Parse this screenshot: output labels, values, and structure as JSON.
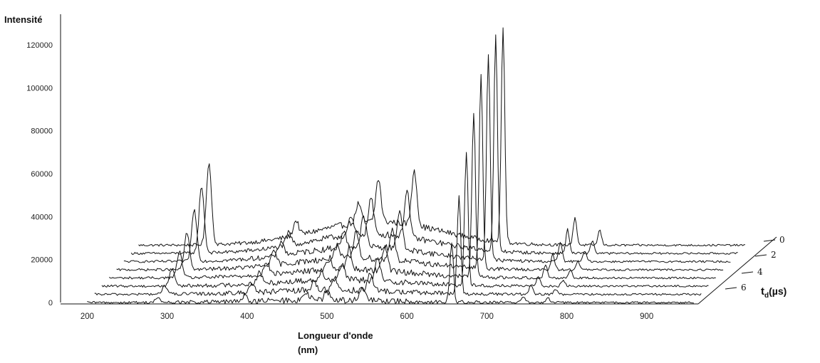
{
  "chart_data": {
    "type": "line",
    "projection": "3d-waterfall",
    "title": "",
    "ylabel": "Intensité",
    "xlabel_line1": "Longueur d'onde",
    "xlabel_line2": "(nm)",
    "zlabel": "t",
    "zlabel_sub": "d",
    "zlabel_unit": "(µs)",
    "xlim": [
      180,
      960
    ],
    "ylim": [
      0,
      130000
    ],
    "x_ticks": [
      "200",
      "300",
      "400",
      "500",
      "600",
      "700",
      "800",
      "900"
    ],
    "y_ticks": [
      "0",
      "20000",
      "40000",
      "60000",
      "80000",
      "100000",
      "120000"
    ],
    "z_ticks": [
      "0",
      "2",
      "4",
      "6"
    ],
    "delays_us": [
      0,
      1,
      2,
      3,
      4,
      5,
      6,
      7
    ],
    "broad_continuum": {
      "center_nm": 500,
      "width_nm": 110,
      "amplitude_by_delay": [
        11000,
        9000,
        7000,
        5500,
        4000,
        3000,
        2000,
        1200
      ]
    },
    "peaks": [
      {
        "nm": 288,
        "heights": [
          38000,
          31000,
          24000,
          17000,
          12000,
          8000,
          4000,
          2000
        ]
      },
      {
        "nm": 397,
        "heights": [
          7000,
          6000,
          7000,
          6000,
          5500,
          5000,
          4500,
          3000
        ]
      },
      {
        "nm": 475,
        "heights": [
          9000,
          8000,
          7000,
          6000,
          5000,
          4500,
          4000,
          3000
        ]
      },
      {
        "nm": 500,
        "heights": [
          20000,
          17000,
          14000,
          12000,
          10000,
          8000,
          6000,
          4000
        ]
      },
      {
        "nm": 545,
        "heights": [
          26000,
          22000,
          18000,
          15000,
          12000,
          10000,
          8000,
          6000
        ]
      },
      {
        "nm": 656,
        "heights": [
          100000,
          100000,
          96000,
          90000,
          77000,
          62000,
          45000,
          28000
        ]
      },
      {
        "nm": 746,
        "heights": [
          13000,
          11000,
          9000,
          7000,
          6000,
          5000,
          4000,
          3000
        ]
      },
      {
        "nm": 777,
        "heights": [
          7000,
          6000,
          5000,
          4000,
          3500,
          3000,
          2500,
          2000
        ]
      }
    ]
  }
}
